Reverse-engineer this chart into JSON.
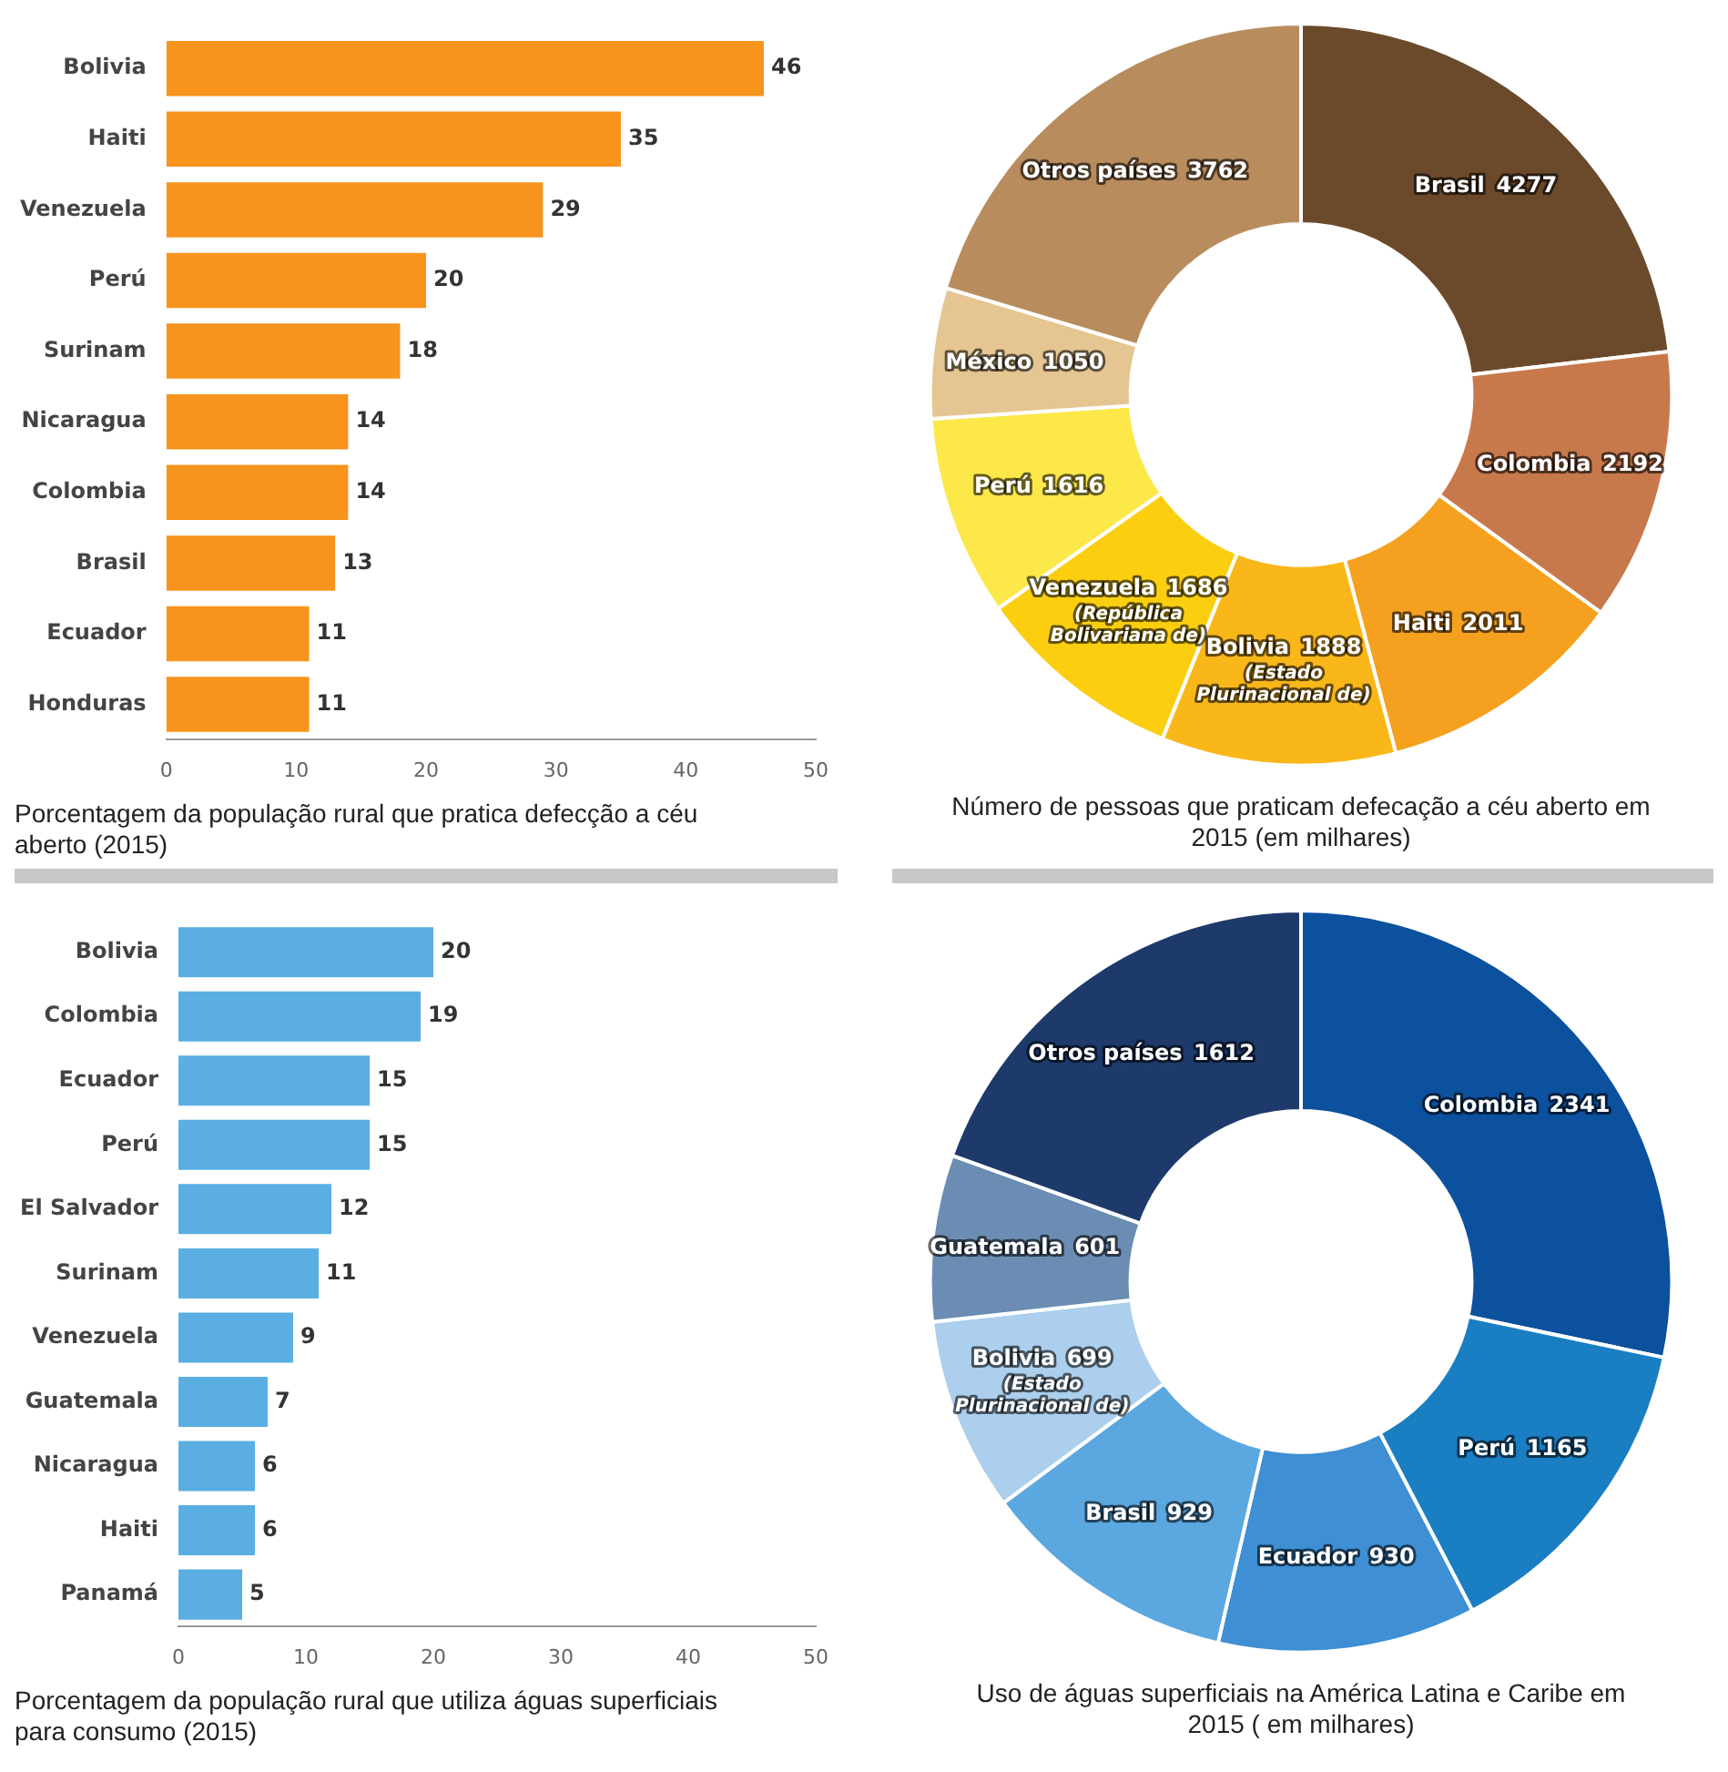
{
  "chart_data": [
    {
      "type": "bar",
      "orientation": "horizontal",
      "title": "Porcentagem da população rural que pratica defecção a céu aberto (2015)",
      "categories": [
        "Bolivia",
        "Haiti",
        "Venezuela",
        "Perú",
        "Surinam",
        "Nicaragua",
        "Colombia",
        "Brasil",
        "Ecuador",
        "Honduras"
      ],
      "values": [
        46,
        35,
        29,
        20,
        18,
        14,
        14,
        13,
        11,
        11
      ],
      "color": "#f7941d",
      "xlim": [
        0,
        50
      ],
      "xticks": [
        0,
        10,
        20,
        30,
        40,
        50
      ],
      "data_labels": true,
      "legend": false,
      "grid": false
    },
    {
      "type": "donut",
      "title": "Número de pessoas que praticam defecação a céu aberto em 2015 (em milhares)",
      "categories": [
        "Brasil",
        "Colombia",
        "Haiti",
        "Bolivia (Estado Plurinacional de)",
        "Venezuela (República Bolivariana de)",
        "Perú",
        "México",
        "Otros países"
      ],
      "values": [
        4277,
        2192,
        2011,
        1888,
        1686,
        1616,
        1050,
        3762
      ],
      "data_labels": true,
      "colors": [
        "#6b4a2b",
        "#c8794c",
        "#f5a11f",
        "#f9b71a",
        "#fbcf10",
        "#fde84a",
        "#e5c592",
        "#b98c5e"
      ],
      "legend": false
    },
    {
      "type": "bar",
      "orientation": "horizontal",
      "title": "Porcentagem da população rural que utiliza águas superficiais para consumo (2015)",
      "categories": [
        "Bolivia",
        "Colombia",
        "Ecuador",
        "Perú",
        "El Salvador",
        "Surinam",
        "Venezuela",
        "Guatemala",
        "Nicaragua",
        "Haiti",
        "Panamá"
      ],
      "values": [
        20,
        19,
        15,
        15,
        12,
        11,
        9,
        7,
        6,
        6,
        5
      ],
      "color": "#5aaee2",
      "xlim": [
        0,
        50
      ],
      "xticks": [
        0,
        10,
        20,
        30,
        40,
        50
      ],
      "data_labels": true,
      "legend": false,
      "grid": false
    },
    {
      "type": "donut",
      "title": "Uso de águas superficiais na América Latina e Caribe em 2015 ( em milhares)",
      "categories": [
        "Colombia",
        "Perú",
        "Ecuador",
        "Brasil",
        "Bolivia (Estado Plurinacional de)",
        "Guatemala",
        "Otros países"
      ],
      "values": [
        2341,
        1165,
        930,
        929,
        699,
        601,
        1612
      ],
      "data_labels": true,
      "colors": [
        "#0b519e",
        "#1a7ec3",
        "#3e8fd3",
        "#5ba7e0",
        "#abcfed",
        "#6b8db3",
        "#1d3a6b"
      ],
      "legend": false
    }
  ]
}
